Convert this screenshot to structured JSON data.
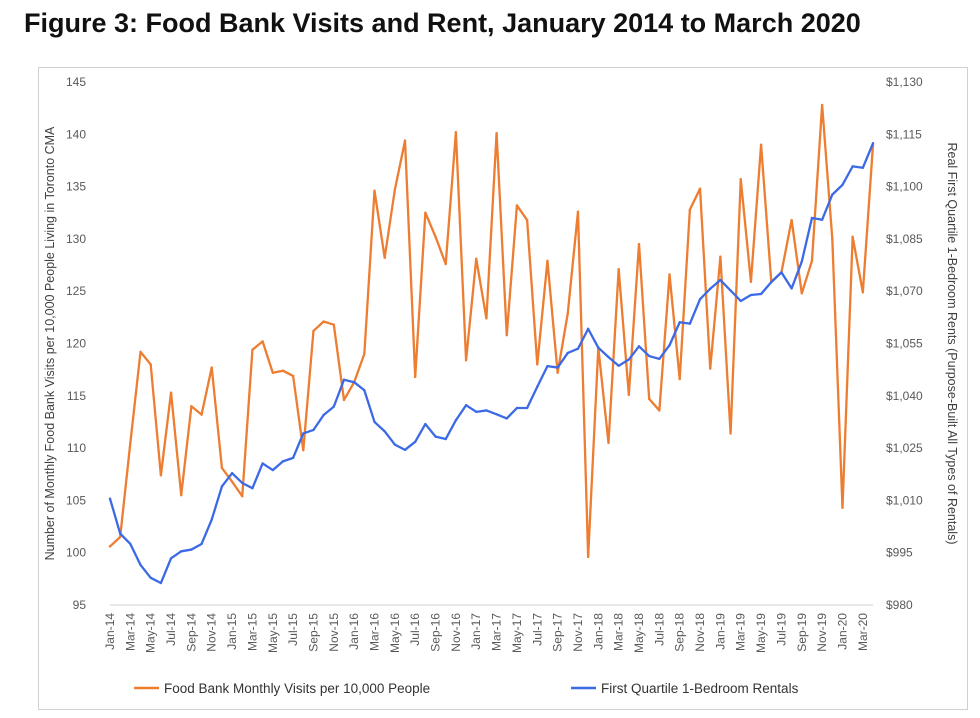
{
  "title": "Figure 3: Food Bank Visits and Rent, January 2014 to March 2020",
  "chart_data": {
    "type": "line",
    "title": "Figure 3: Food Bank Visits and Rent, January 2014 to March 2020",
    "ylabel": "Number of Monthly Food Bank Visits per 10,000 People Living in Toronto CMA",
    "y2label": "Real First Quartile 1-Bedroom Rents (Purpose-Built All Types of Rentals)",
    "xlabel": "",
    "ylim": [
      95,
      145
    ],
    "y2lim": [
      980,
      1130
    ],
    "yticks": [
      "95",
      "100",
      "105",
      "110",
      "115",
      "120",
      "125",
      "130",
      "135",
      "140",
      "145"
    ],
    "y2ticks": [
      "$980",
      "$995",
      "$1,010",
      "$1,025",
      "$1,040",
      "$1,055",
      "$1,070",
      "$1,085",
      "$1,100",
      "$1,115",
      "$1,130"
    ],
    "x_tick_labels": [
      "Jan-14",
      "Mar-14",
      "May-14",
      "Jul-14",
      "Sep-14",
      "Nov-14",
      "Jan-15",
      "Mar-15",
      "May-15",
      "Jul-15",
      "Sep-15",
      "Nov-15",
      "Jan-16",
      "Mar-16",
      "May-16",
      "Jul-16",
      "Sep-16",
      "Nov-16",
      "Jan-17",
      "Mar-17",
      "May-17",
      "Jul-17",
      "Sep-17",
      "Nov-17",
      "Jan-18",
      "Mar-18",
      "May-18",
      "Jul-18",
      "Sep-18",
      "Nov-18",
      "Jan-19",
      "Mar-19",
      "May-19",
      "Jul-19",
      "Sep-19",
      "Nov-19",
      "Jan-20",
      "Mar-20"
    ],
    "grid": false,
    "legend_position": "bottom",
    "series": [
      {
        "name": "Food Bank Monthly Visits per 10,000 People",
        "axis": "left",
        "color": "#ED7D31",
        "values": [
          100.6,
          101.5,
          110.5,
          119.2,
          118.0,
          107.4,
          115.3,
          105.5,
          114.0,
          113.2,
          117.7,
          108.1,
          106.8,
          105.4,
          119.4,
          120.2,
          117.2,
          117.4,
          116.9,
          109.8,
          121.2,
          122.1,
          121.8,
          114.6,
          116.3,
          119.0,
          134.6,
          128.2,
          134.7,
          139.4,
          116.8,
          132.5,
          130.2,
          127.6,
          140.2,
          118.4,
          128.1,
          122.4,
          140.1,
          120.8,
          133.2,
          131.8,
          118.0,
          127.9,
          117.2,
          122.9,
          132.6,
          99.6,
          119.6,
          110.5,
          127.1,
          115.1,
          129.5,
          114.7,
          113.6,
          126.6,
          116.6,
          132.8,
          134.8,
          117.6,
          128.3,
          111.4,
          135.7,
          125.9,
          139.0,
          125.9,
          126.8,
          131.8,
          124.8,
          127.9,
          142.8,
          130.0,
          104.3,
          130.2,
          124.9,
          139.0
        ]
      },
      {
        "name": "First Quartile 1-Bedroom Rentals",
        "axis": "right",
        "color": "#3C6AE6",
        "values": [
          1010.5,
          1000.5,
          997.5,
          991.5,
          987.8,
          986.3,
          993.4,
          995.4,
          995.9,
          997.5,
          1004.5,
          1014.0,
          1017.8,
          1015.0,
          1013.5,
          1020.6,
          1018.7,
          1021.2,
          1022.2,
          1029.2,
          1030.2,
          1034.5,
          1036.9,
          1044.6,
          1043.9,
          1041.6,
          1032.5,
          1029.8,
          1026.0,
          1024.5,
          1026.8,
          1031.9,
          1028.3,
          1027.6,
          1033.0,
          1037.3,
          1035.4,
          1035.8,
          1034.7,
          1033.5,
          1036.5,
          1036.5,
          1042.6,
          1048.5,
          1048.1,
          1052.3,
          1053.5,
          1059.2,
          1053.8,
          1051.1,
          1048.6,
          1050.4,
          1054.2,
          1051.4,
          1050.6,
          1054.5,
          1061.1,
          1060.7,
          1067.7,
          1070.7,
          1073.2,
          1070.2,
          1067.2,
          1068.9,
          1069.2,
          1072.6,
          1075.4,
          1070.8,
          1078.5,
          1091.0,
          1090.5,
          1097.7,
          1100.5,
          1105.8,
          1105.4,
          1112.4
        ]
      }
    ]
  }
}
